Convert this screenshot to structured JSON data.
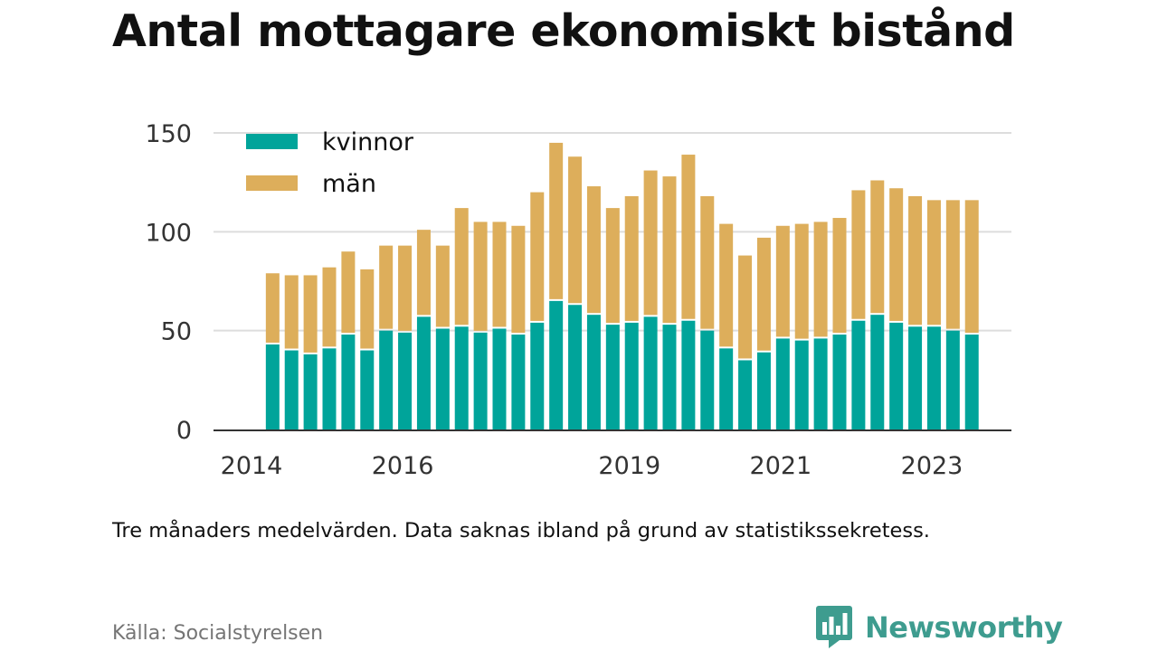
{
  "title": "Antal mottagare ekonomiskt bistånd",
  "caption": "Tre månaders medelvärden. Data saknas ibland på grund av statistikssekretess.",
  "source": "Källa: Socialstyrelsen",
  "brand": {
    "name": "Newsworthy",
    "icon": "newsworthy-logo-icon"
  },
  "colors": {
    "kvinnor": "#00a49a",
    "man": "#ddae5b",
    "grid": "#dddddd",
    "axis": "#333333",
    "brand": "#3e9c8f"
  },
  "chart_data": {
    "type": "bar",
    "stacked": true,
    "title": "Antal mottagare ekonomiskt bistånd",
    "xlabel": "",
    "ylabel": "",
    "ylim": [
      0,
      150
    ],
    "yticks": [
      "0",
      "50",
      "100",
      "150"
    ],
    "ytick_values": [
      0,
      50,
      100,
      150
    ],
    "xticks": [
      {
        "label": "2014",
        "t": 2014.0
      },
      {
        "label": "2016",
        "t": 2016.0
      },
      {
        "label": "2019",
        "t": 2019.0
      },
      {
        "label": "2021",
        "t": 2021.0
      },
      {
        "label": "2023",
        "t": 2023.0
      }
    ],
    "x_start": 2014.375,
    "x_step": 0.25,
    "grid": true,
    "legend": "top-left",
    "series": [
      {
        "name": "kvinnor",
        "values": [
          43,
          40,
          38,
          41,
          48,
          40,
          50,
          49,
          57,
          51,
          52,
          49,
          51,
          48,
          54,
          65,
          63,
          58,
          53,
          54,
          57,
          53,
          55,
          50,
          41,
          35,
          39,
          46,
          45,
          46,
          48,
          55,
          58,
          54,
          52,
          52,
          50,
          48
        ]
      },
      {
        "name": "män",
        "values": [
          36,
          38,
          40,
          41,
          42,
          41,
          43,
          44,
          44,
          42,
          60,
          56,
          54,
          55,
          66,
          80,
          75,
          65,
          59,
          64,
          74,
          75,
          84,
          68,
          63,
          53,
          58,
          57,
          59,
          59,
          59,
          66,
          68,
          68,
          66,
          64,
          66,
          68
        ]
      }
    ]
  }
}
